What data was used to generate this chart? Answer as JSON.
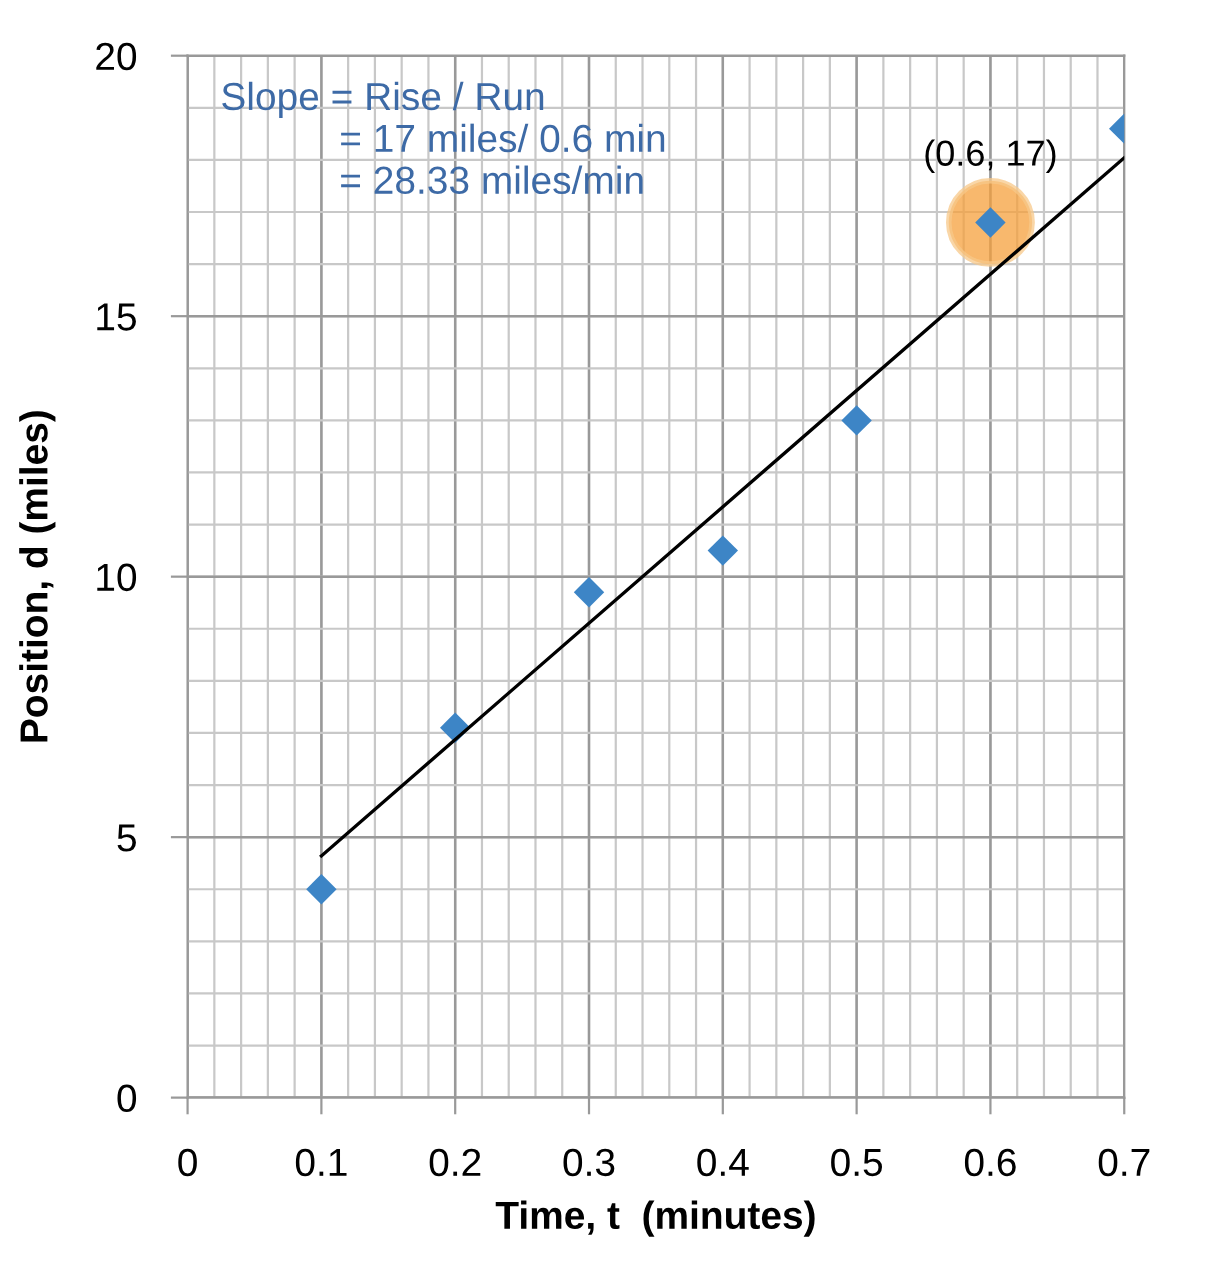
{
  "chart_data": {
    "type": "scatter",
    "xlabel": "Time, t  (minutes)",
    "ylabel": "Position, d (miles)",
    "x": [
      0.1,
      0.2,
      0.3,
      0.4,
      0.5,
      0.6,
      0.7
    ],
    "series": [
      {
        "type": "scatter",
        "color": "#f5a03c",
        "x": [
          0.6
        ],
        "values": [
          16.8
        ],
        "marker": "circle"
      },
      {
        "color": "#3d85c6",
        "values": [
          4.0,
          7.1,
          9.7,
          10.5,
          13.0,
          16.8,
          18.6
        ],
        "marker": "diamond"
      },
      {
        "type": "line",
        "color": "#000000",
        "x": [
          0.1,
          0.7
        ],
        "values": [
          4.64,
          18.04
        ],
        "marker": "none"
      }
    ],
    "xlim": [
      0,
      0.7
    ],
    "ylim": [
      0,
      20
    ],
    "xticks": [
      0,
      0.1,
      0.2,
      0.3,
      0.4,
      0.5,
      0.6,
      0.7
    ],
    "yticks": [
      0,
      5,
      10,
      15,
      20
    ],
    "grid": true,
    "legend": false,
    "annotations": [
      "Slope = Rise / Run\n           = 17 miles/ 0.6 min\n           = 28.33 miles/min",
      {
        "text": "(0.6, 17)",
        "x": 0.6,
        "y": 17
      }
    ]
  }
}
